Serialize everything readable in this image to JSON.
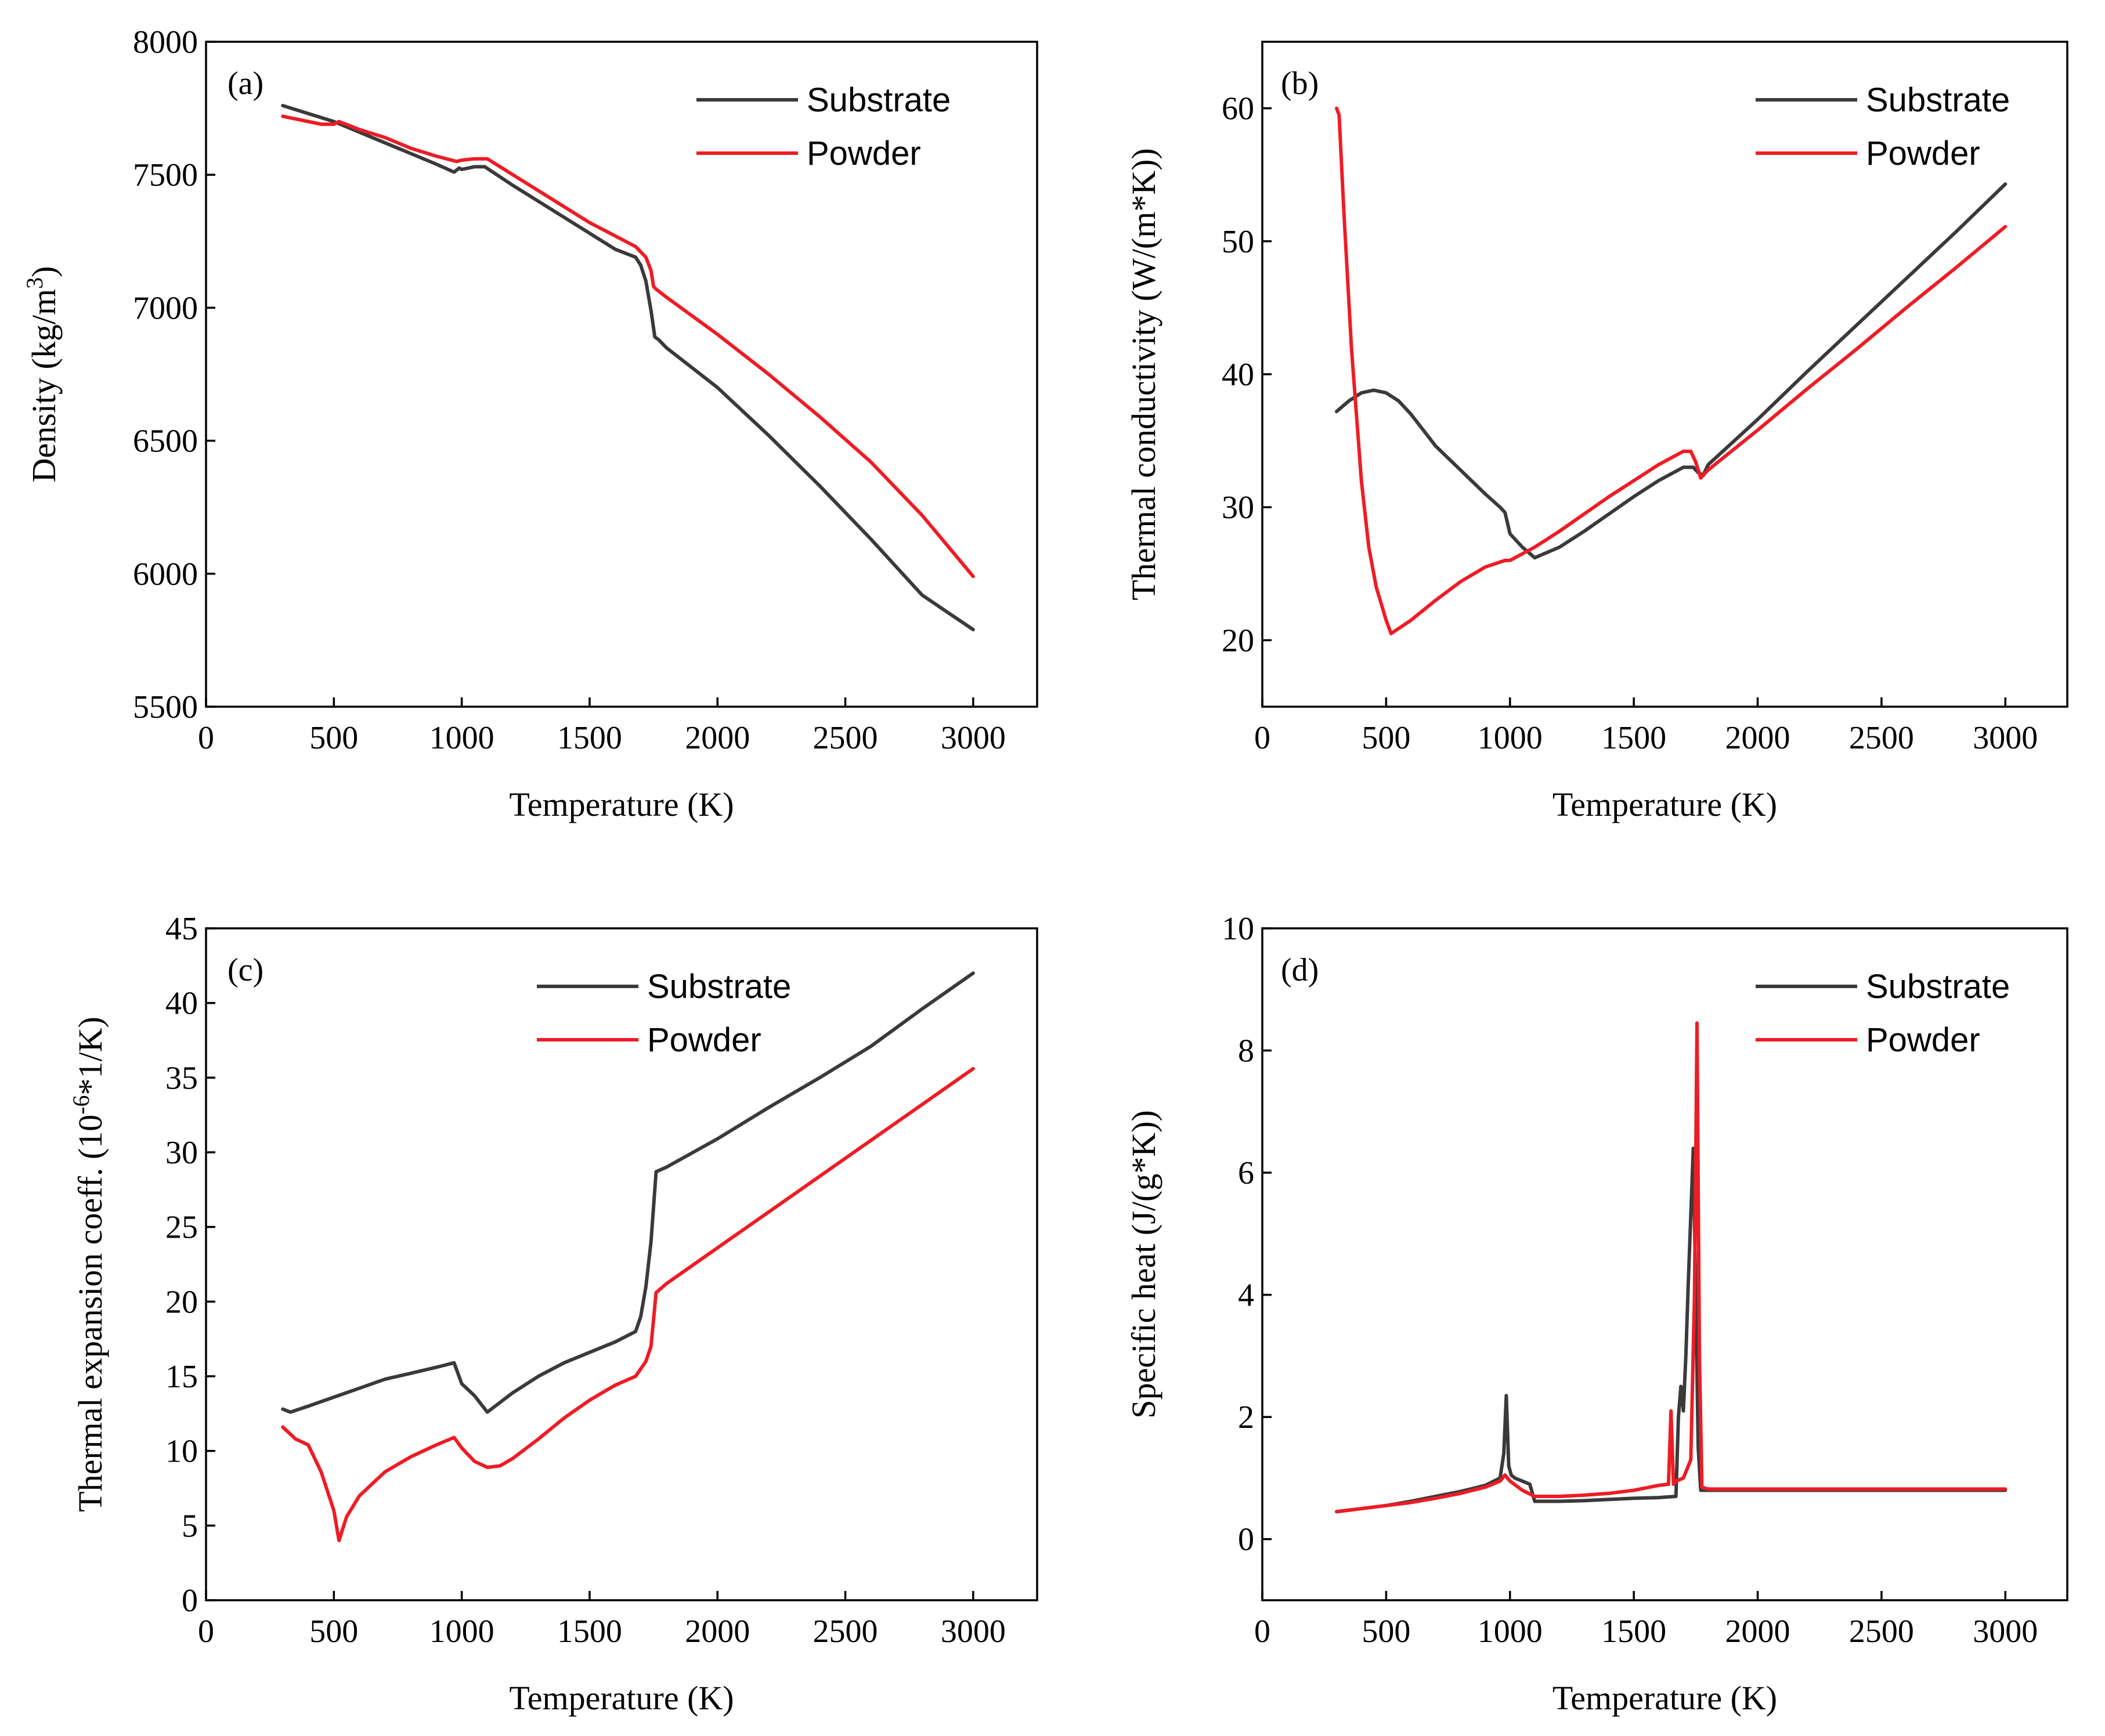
{
  "colors": {
    "substrate": "#3a3a3a",
    "powder": "#ee1c25"
  },
  "chart_data": [
    {
      "type": "line",
      "label": "(a)",
      "xlabel": "Temperature (K)",
      "ylabel": "Density (kg/m",
      "ylabel_sup": "3",
      "ylabel_tail": ")",
      "xlim": [
        0,
        3250
      ],
      "ylim": [
        5500,
        8000
      ],
      "xticks": [
        0,
        500,
        1000,
        1500,
        2000,
        2500,
        3000
      ],
      "yticks": [
        5500,
        6000,
        6500,
        7000,
        7500,
        8000
      ],
      "series": [
        {
          "name": "Substrate",
          "color_key": "substrate",
          "x": [
            300,
            400,
            500,
            600,
            700,
            800,
            900,
            970,
            990,
            1000,
            1050,
            1090,
            1200,
            1300,
            1400,
            1500,
            1600,
            1680,
            1700,
            1720,
            1740,
            1755,
            1770,
            1800,
            2000,
            2200,
            2400,
            2600,
            2800,
            3000
          ],
          "y": [
            7760,
            7730,
            7700,
            7660,
            7620,
            7580,
            7540,
            7510,
            7525,
            7520,
            7530,
            7530,
            7460,
            7400,
            7340,
            7280,
            7220,
            7190,
            7160,
            7100,
            6990,
            6890,
            6880,
            6850,
            6700,
            6520,
            6330,
            6130,
            5920,
            5790
          ]
        },
        {
          "name": "Powder",
          "color_key": "powder",
          "x": [
            300,
            400,
            450,
            500,
            520,
            600,
            700,
            800,
            900,
            980,
            1000,
            1050,
            1100,
            1200,
            1300,
            1400,
            1500,
            1600,
            1680,
            1720,
            1740,
            1750,
            1760,
            1800,
            2000,
            2200,
            2400,
            2600,
            2800,
            3000
          ],
          "y": [
            7720,
            7700,
            7690,
            7690,
            7700,
            7670,
            7640,
            7600,
            7570,
            7550,
            7555,
            7560,
            7560,
            7500,
            7440,
            7380,
            7320,
            7270,
            7230,
            7190,
            7140,
            7080,
            7070,
            7040,
            6900,
            6750,
            6590,
            6420,
            6220,
            5990
          ]
        }
      ]
    },
    {
      "type": "line",
      "label": "(b)",
      "xlabel": "Temperature (K)",
      "ylabel": "Thermal conductivity (W/(m*K))",
      "xlim": [
        0,
        3250
      ],
      "ylim": [
        15,
        65
      ],
      "xticks": [
        0,
        500,
        1000,
        1500,
        2000,
        2500,
        3000
      ],
      "yticks": [
        20,
        30,
        40,
        50,
        60
      ],
      "series": [
        {
          "name": "Substrate",
          "color_key": "substrate",
          "x": [
            300,
            350,
            400,
            450,
            500,
            550,
            600,
            650,
            700,
            800,
            900,
            960,
            980,
            1000,
            1050,
            1100,
            1200,
            1300,
            1400,
            1500,
            1600,
            1700,
            1740,
            1760,
            1780,
            1800,
            2000,
            2200,
            2400,
            2600,
            2800,
            3000
          ],
          "y": [
            37.2,
            38.0,
            38.6,
            38.8,
            38.6,
            38.0,
            37.0,
            35.8,
            34.6,
            32.8,
            31.0,
            30.0,
            29.6,
            28.0,
            27.0,
            26.2,
            27.0,
            28.2,
            29.5,
            30.8,
            32.0,
            33.0,
            33.0,
            32.6,
            32.4,
            33.2,
            36.6,
            40.2,
            43.7,
            47.2,
            50.7,
            54.3
          ]
        },
        {
          "name": "Powder",
          "color_key": "powder",
          "x": [
            300,
            310,
            330,
            360,
            400,
            430,
            460,
            500,
            520,
            600,
            700,
            800,
            900,
            980,
            1000,
            1100,
            1200,
            1300,
            1400,
            1500,
            1600,
            1700,
            1730,
            1750,
            1770,
            1800,
            2000,
            2200,
            2400,
            2600,
            2800,
            3000
          ],
          "y": [
            60.0,
            59.5,
            52.0,
            42.0,
            32.0,
            27.0,
            24.0,
            21.5,
            20.5,
            21.5,
            23.0,
            24.4,
            25.5,
            26.0,
            26.0,
            27.0,
            28.2,
            29.5,
            30.8,
            32.0,
            33.2,
            34.2,
            34.2,
            33.4,
            32.2,
            32.8,
            35.8,
            38.9,
            41.9,
            45.0,
            48.0,
            51.1
          ]
        }
      ]
    },
    {
      "type": "line",
      "label": "(c)",
      "xlabel": "Temperature (K)",
      "ylabel": "Thermal expansion coeff. (10",
      "ylabel_sup": "-6",
      "ylabel_tail": "*1/K)",
      "xlim": [
        0,
        3250
      ],
      "ylim": [
        0,
        45
      ],
      "xticks": [
        0,
        500,
        1000,
        1500,
        2000,
        2500,
        3000
      ],
      "yticks": [
        0,
        5,
        10,
        15,
        20,
        25,
        30,
        35,
        40,
        45
      ],
      "series": [
        {
          "name": "Substrate",
          "color_key": "substrate",
          "x": [
            300,
            330,
            400,
            500,
            600,
            700,
            800,
            900,
            970,
            1000,
            1050,
            1100,
            1200,
            1300,
            1400,
            1500,
            1600,
            1680,
            1700,
            1720,
            1740,
            1760,
            1800,
            2000,
            2200,
            2400,
            2600,
            2800,
            3000
          ],
          "y": [
            12.8,
            12.6,
            13.0,
            13.6,
            14.2,
            14.8,
            15.2,
            15.6,
            15.9,
            14.5,
            13.7,
            12.6,
            13.9,
            15.0,
            15.9,
            16.6,
            17.3,
            18.0,
            19.0,
            21.0,
            24.0,
            28.7,
            29.0,
            30.9,
            33.0,
            35.0,
            37.1,
            39.6,
            42.0
          ]
        },
        {
          "name": "Powder",
          "color_key": "powder",
          "x": [
            300,
            350,
            400,
            450,
            500,
            520,
            550,
            600,
            700,
            800,
            900,
            970,
            1000,
            1050,
            1100,
            1150,
            1200,
            1300,
            1400,
            1500,
            1600,
            1680,
            1720,
            1740,
            1760,
            1800,
            2000,
            2200,
            2400,
            2600,
            2800,
            3000
          ],
          "y": [
            11.6,
            10.8,
            10.4,
            8.6,
            6.0,
            4.0,
            5.6,
            7.0,
            8.6,
            9.6,
            10.4,
            10.9,
            10.2,
            9.3,
            8.9,
            9.0,
            9.5,
            10.8,
            12.2,
            13.4,
            14.4,
            15.0,
            16.0,
            17.0,
            20.6,
            21.2,
            23.6,
            26.0,
            28.4,
            30.8,
            33.2,
            35.6
          ]
        }
      ]
    },
    {
      "type": "line",
      "label": "(d)",
      "xlabel": "Temperature (K)",
      "ylabel": "Specific heat  (J/(g*K))",
      "xlim": [
        0,
        3250
      ],
      "ylim": [
        -1,
        10
      ],
      "xticks": [
        0,
        500,
        1000,
        1500,
        2000,
        2500,
        3000
      ],
      "yticks": [
        0,
        2,
        4,
        6,
        8,
        10
      ],
      "series": [
        {
          "name": "Substrate",
          "color_key": "substrate",
          "x": [
            300,
            400,
            500,
            600,
            700,
            800,
            900,
            960,
            975,
            985,
            995,
            1005,
            1020,
            1050,
            1080,
            1100,
            1200,
            1300,
            1400,
            1500,
            1600,
            1670,
            1680,
            1690,
            1700,
            1710,
            1720,
            1740,
            1750,
            1760,
            1770,
            1800,
            2000,
            2500,
            3000
          ],
          "y": [
            0.45,
            0.5,
            0.55,
            0.62,
            0.7,
            0.78,
            0.88,
            1.0,
            1.4,
            2.35,
            1.2,
            1.05,
            1.0,
            0.95,
            0.9,
            0.62,
            0.62,
            0.63,
            0.65,
            0.67,
            0.68,
            0.7,
            2.0,
            2.5,
            2.1,
            3.0,
            4.2,
            6.4,
            4.0,
            1.5,
            0.8,
            0.8,
            0.8,
            0.8,
            0.8
          ]
        },
        {
          "name": "Powder",
          "color_key": "powder",
          "x": [
            300,
            400,
            500,
            600,
            700,
            800,
            900,
            960,
            980,
            1000,
            1050,
            1100,
            1200,
            1300,
            1400,
            1500,
            1600,
            1640,
            1650,
            1660,
            1670,
            1700,
            1730,
            1745,
            1755,
            1765,
            1775,
            1800,
            2000,
            2500,
            3000
          ],
          "y": [
            0.45,
            0.5,
            0.55,
            0.6,
            0.67,
            0.75,
            0.85,
            0.95,
            1.05,
            0.95,
            0.8,
            0.7,
            0.7,
            0.72,
            0.75,
            0.8,
            0.88,
            0.9,
            2.1,
            0.9,
            0.95,
            1.0,
            1.3,
            4.0,
            8.45,
            3.0,
            0.85,
            0.82,
            0.82,
            0.82,
            0.82
          ]
        }
      ]
    }
  ]
}
